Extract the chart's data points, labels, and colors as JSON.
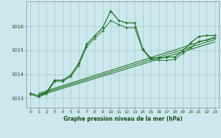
{
  "title": "Graphe pression niveau de la mer (hPa)",
  "bg_color": "#cce8ee",
  "grid_color": "#aacccc",
  "line_color": "#1a6e1a",
  "text_color": "#1a4a1a",
  "xlim": [
    -0.5,
    23.5
  ],
  "ylim": [
    1012.6,
    1017.05
  ],
  "yticks": [
    1013,
    1014,
    1015,
    1016
  ],
  "xticks": [
    0,
    1,
    2,
    3,
    4,
    5,
    6,
    7,
    8,
    9,
    10,
    11,
    12,
    13,
    14,
    15,
    16,
    17,
    18,
    19,
    20,
    21,
    22,
    23
  ],
  "series1_x": [
    0,
    1,
    2,
    3,
    4,
    5,
    6,
    7,
    8,
    9,
    10,
    11,
    12,
    13,
    14,
    15,
    16,
    17,
    18,
    19,
    20,
    21,
    22,
    23
  ],
  "series1_y": [
    1013.2,
    1013.1,
    1013.25,
    1013.75,
    1013.75,
    1013.95,
    1014.45,
    1015.25,
    1015.6,
    1015.95,
    1016.65,
    1016.25,
    1016.15,
    1016.15,
    1015.05,
    1014.68,
    1014.68,
    1014.72,
    1014.72,
    1014.98,
    1015.32,
    1015.58,
    1015.62,
    1015.62
  ],
  "series2_x": [
    0,
    1,
    2,
    3,
    4,
    5,
    6,
    7,
    8,
    9,
    10,
    11,
    12,
    13,
    14,
    15,
    16,
    17,
    18,
    19,
    20,
    21,
    22,
    23
  ],
  "series2_y": [
    1013.15,
    1013.05,
    1013.18,
    1013.7,
    1013.7,
    1013.9,
    1014.35,
    1015.15,
    1015.5,
    1015.82,
    1016.25,
    1016.08,
    1015.95,
    1015.95,
    1015.02,
    1014.62,
    1014.58,
    1014.58,
    1014.62,
    1014.88,
    1015.12,
    1015.38,
    1015.42,
    1015.52
  ],
  "trend1_x": [
    1,
    23
  ],
  "trend1_y": [
    1013.2,
    1015.55
  ],
  "trend2_x": [
    1,
    23
  ],
  "trend2_y": [
    1013.15,
    1015.45
  ],
  "trend3_x": [
    1,
    23
  ],
  "trend3_y": [
    1013.1,
    1015.35
  ]
}
